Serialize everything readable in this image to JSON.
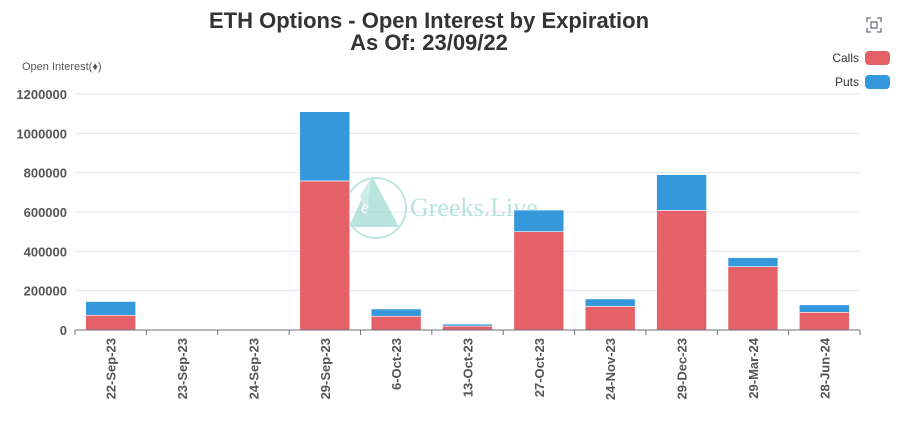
{
  "chart_data": {
    "type": "bar",
    "stacked": true,
    "title": "ETH Options - Open Interest by Expiration",
    "subtitle": "As Of: 23/09/22",
    "ylabel": "Open Interest(♦)",
    "xlabel": "",
    "ylim": [
      0,
      1200000
    ],
    "yticks": [
      0,
      200000,
      400000,
      600000,
      800000,
      1000000,
      1200000
    ],
    "grid": true,
    "legend_position": "top-right",
    "categories": [
      "22-Sep-23",
      "23-Sep-23",
      "24-Sep-23",
      "29-Sep-23",
      "6-Oct-23",
      "13-Oct-23",
      "27-Oct-23",
      "24-Nov-23",
      "29-Dec-23",
      "29-Mar-24",
      "28-Jun-24"
    ],
    "series": [
      {
        "name": "Calls",
        "color": "#e46167",
        "values": [
          75000,
          3000,
          1500,
          758000,
          70000,
          20000,
          500000,
          120000,
          608000,
          322000,
          90000
        ]
      },
      {
        "name": "Puts",
        "color": "#3498db",
        "values": [
          70000,
          2000,
          1000,
          352000,
          37000,
          10000,
          110000,
          38000,
          182000,
          46000,
          38000
        ]
      }
    ]
  },
  "watermark_text": "Greeks.Live",
  "restore_icon": "restore-icon"
}
